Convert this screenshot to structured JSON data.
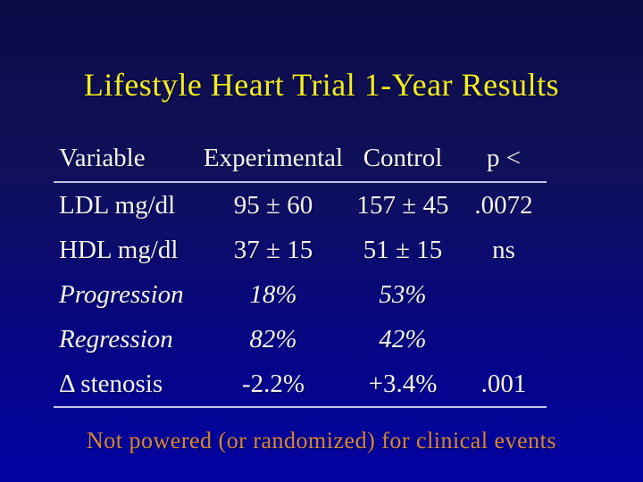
{
  "slide": {
    "title": "Lifestyle Heart Trial 1-Year Results",
    "footnote": "Not powered (or randomized) for clinical events"
  },
  "table": {
    "headers": {
      "variable": "Variable",
      "experimental": "Experimental",
      "control": "Control",
      "p": "p <"
    },
    "rows": [
      {
        "variable": "LDL mg/dl",
        "experimental": "95 ± 60",
        "control": "157 ± 45",
        "p": ".0072"
      },
      {
        "variable": "HDL mg/dl",
        "experimental": "37 ± 15",
        "control": "51 ± 15",
        "p": "ns"
      },
      {
        "variable": "Progression",
        "experimental": "18%",
        "control": "53%",
        "p": ""
      },
      {
        "variable": "Regression",
        "experimental": "82%",
        "control": "42%",
        "p": ""
      },
      {
        "variable": "Δ stenosis",
        "experimental": "-2.2%",
        "control": "+3.4%",
        "p": ".001"
      }
    ]
  },
  "colors": {
    "background_top": "#0b0b47",
    "background_bottom": "#0202a2",
    "title_text": "#f2ee20",
    "table_text": "#f4f4f8",
    "rule": "#c3c8e4",
    "footnote_text": "#d6863a"
  }
}
